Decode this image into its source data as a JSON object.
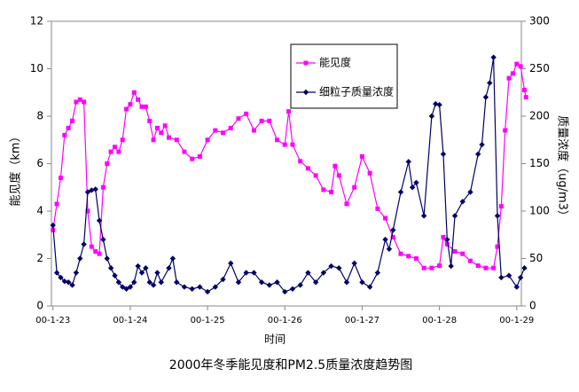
{
  "chart_data": {
    "type": "line",
    "title": "2000年冬季能见度和PM2.5质量浓度趋势图",
    "x_label": "时间",
    "y_label": "能见度（km）",
    "y2_label": "质量浓度（ug/m3）",
    "xlim": [
      22.98,
      29.06
    ],
    "xticks": [
      {
        "value": 23,
        "label": "00-1-23"
      },
      {
        "value": 24,
        "label": "00-1-24"
      },
      {
        "value": 25,
        "label": "00-1-25"
      },
      {
        "value": 26,
        "label": "00-1-26"
      },
      {
        "value": 27,
        "label": "00-1-27"
      },
      {
        "value": 28,
        "label": "00-1-28"
      },
      {
        "value": 29,
        "label": "00-1-29"
      }
    ],
    "ylim": [
      0,
      12
    ],
    "yticks": [
      0,
      2,
      4,
      6,
      8,
      10,
      12
    ],
    "y2lim": [
      0,
      300
    ],
    "y2ticks": [
      0,
      50,
      100,
      150,
      200,
      250,
      300
    ],
    "series": [
      {
        "name": "能见度",
        "color": "#ff00ff",
        "marker": "square",
        "x": [
          23.0,
          23.05,
          23.1,
          23.15,
          23.2,
          23.25,
          23.3,
          23.35,
          23.4,
          23.45,
          23.5,
          23.55,
          23.6,
          23.65,
          23.7,
          23.75,
          23.8,
          23.85,
          23.9,
          23.95,
          24.0,
          24.05,
          24.1,
          24.15,
          24.2,
          24.25,
          24.3,
          24.35,
          24.4,
          24.45,
          24.5,
          24.6,
          24.7,
          24.8,
          24.9,
          25.0,
          25.1,
          25.2,
          25.3,
          25.4,
          25.5,
          25.6,
          25.7,
          25.8,
          25.9,
          26.0,
          26.05,
          26.1,
          26.2,
          26.3,
          26.4,
          26.5,
          26.6,
          26.65,
          26.7,
          26.8,
          26.9,
          27.0,
          27.1,
          27.2,
          27.3,
          27.4,
          27.5,
          27.6,
          27.7,
          27.8,
          27.9,
          28.0,
          28.05,
          28.1,
          28.2,
          28.3,
          28.4,
          28.5,
          28.6,
          28.7,
          28.75,
          28.8,
          28.85,
          28.9,
          28.95,
          29.0,
          29.05,
          29.1,
          29.12
        ],
        "values": [
          3.2,
          4.3,
          5.4,
          7.2,
          7.5,
          7.8,
          8.6,
          8.7,
          8.6,
          4.0,
          2.5,
          2.3,
          2.2,
          5.0,
          6.0,
          6.5,
          6.7,
          6.5,
          7.0,
          8.3,
          8.5,
          9.0,
          8.7,
          8.4,
          8.4,
          7.8,
          7.0,
          7.5,
          7.3,
          7.6,
          7.1,
          7.0,
          6.5,
          6.2,
          6.3,
          7.0,
          7.4,
          7.3,
          7.5,
          7.9,
          8.1,
          7.4,
          7.8,
          7.8,
          7.0,
          6.8,
          8.2,
          6.8,
          6.1,
          5.8,
          5.5,
          4.9,
          4.8,
          5.9,
          5.5,
          4.3,
          5.0,
          6.3,
          5.6,
          4.1,
          3.7,
          2.9,
          2.2,
          2.1,
          2.0,
          1.6,
          1.6,
          1.7,
          2.9,
          2.6,
          2.3,
          2.2,
          1.9,
          1.7,
          1.6,
          1.6,
          2.5,
          4.2,
          7.4,
          9.6,
          9.8,
          10.2,
          10.1,
          9.1,
          8.8
        ]
      },
      {
        "name": "细粒子质量浓度",
        "color": "#000066",
        "marker": "diamond",
        "axis": "y2",
        "x": [
          23.0,
          23.05,
          23.1,
          23.15,
          23.2,
          23.25,
          23.3,
          23.35,
          23.4,
          23.45,
          23.5,
          23.55,
          23.6,
          23.65,
          23.7,
          23.75,
          23.8,
          23.85,
          23.9,
          23.95,
          24.0,
          24.05,
          24.1,
          24.15,
          24.2,
          24.25,
          24.3,
          24.35,
          24.4,
          24.5,
          24.55,
          24.6,
          24.7,
          24.8,
          24.9,
          25.0,
          25.1,
          25.2,
          25.3,
          25.4,
          25.5,
          25.6,
          25.7,
          25.8,
          25.9,
          26.0,
          26.1,
          26.2,
          26.3,
          26.4,
          26.5,
          26.6,
          26.7,
          26.8,
          26.9,
          27.0,
          27.1,
          27.2,
          27.3,
          27.35,
          27.4,
          27.5,
          27.6,
          27.65,
          27.7,
          27.8,
          27.9,
          27.95,
          28.0,
          28.05,
          28.1,
          28.15,
          28.2,
          28.3,
          28.4,
          28.5,
          28.55,
          28.6,
          28.65,
          28.7,
          28.75,
          28.8,
          28.9,
          29.0,
          29.05,
          29.1
        ],
        "values": [
          85,
          35,
          30,
          26,
          25,
          22,
          35,
          50,
          65,
          120,
          122,
          123,
          90,
          70,
          50,
          40,
          32,
          25,
          20,
          18,
          20,
          25,
          42,
          35,
          40,
          25,
          22,
          35,
          25,
          40,
          50,
          25,
          20,
          18,
          20,
          15,
          20,
          28,
          45,
          25,
          35,
          35,
          25,
          22,
          25,
          15,
          18,
          22,
          35,
          25,
          35,
          42,
          40,
          25,
          45,
          25,
          20,
          35,
          70,
          60,
          80,
          120,
          152,
          125,
          130,
          95,
          200,
          213,
          212,
          160,
          70,
          42,
          95,
          110,
          120,
          160,
          170,
          220,
          235,
          262,
          95,
          30,
          32,
          20,
          30,
          40
        ]
      }
    ]
  }
}
